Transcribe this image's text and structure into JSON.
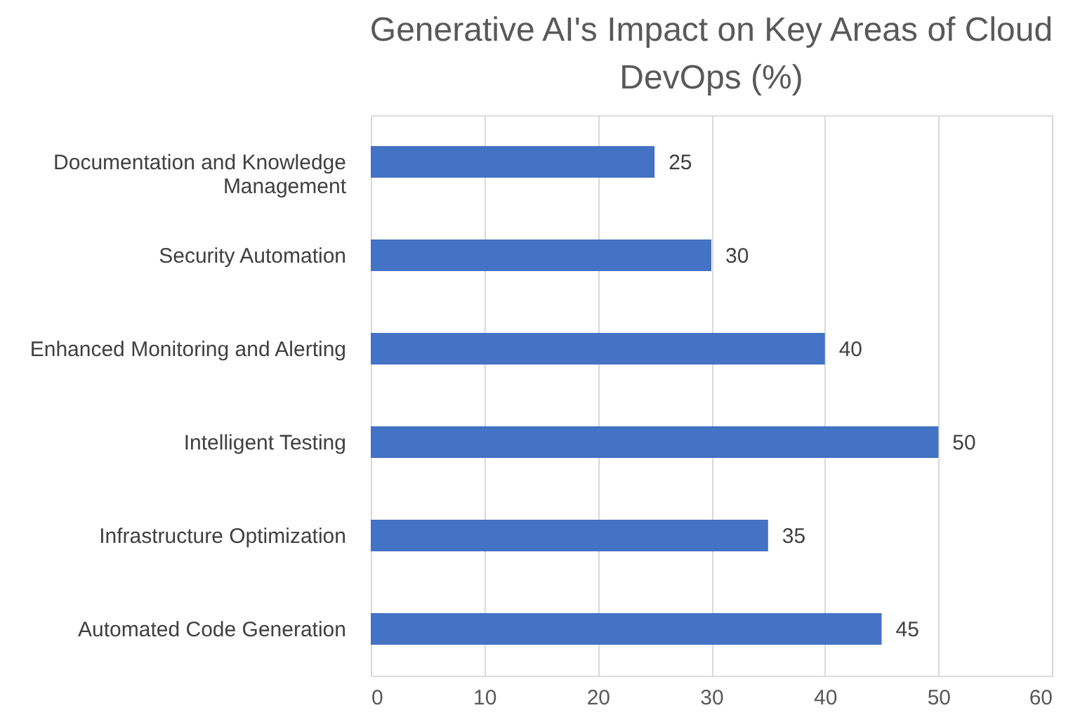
{
  "chart_data": {
    "type": "bar",
    "orientation": "horizontal",
    "title": "Generative AI's Impact on Key Areas of Cloud DevOps (%)",
    "categories": [
      "Documentation and Knowledge Management",
      "Security Automation",
      "Enhanced Monitoring and Alerting",
      "Intelligent Testing",
      "Infrastructure Optimization",
      "Automated Code Generation"
    ],
    "values": [
      25,
      30,
      40,
      50,
      35,
      45
    ],
    "color": "#4472c4",
    "xlim": [
      0,
      60
    ],
    "xticks": [
      0,
      10,
      20,
      30,
      40,
      50,
      60
    ],
    "grid": "x",
    "data_labels": true
  }
}
